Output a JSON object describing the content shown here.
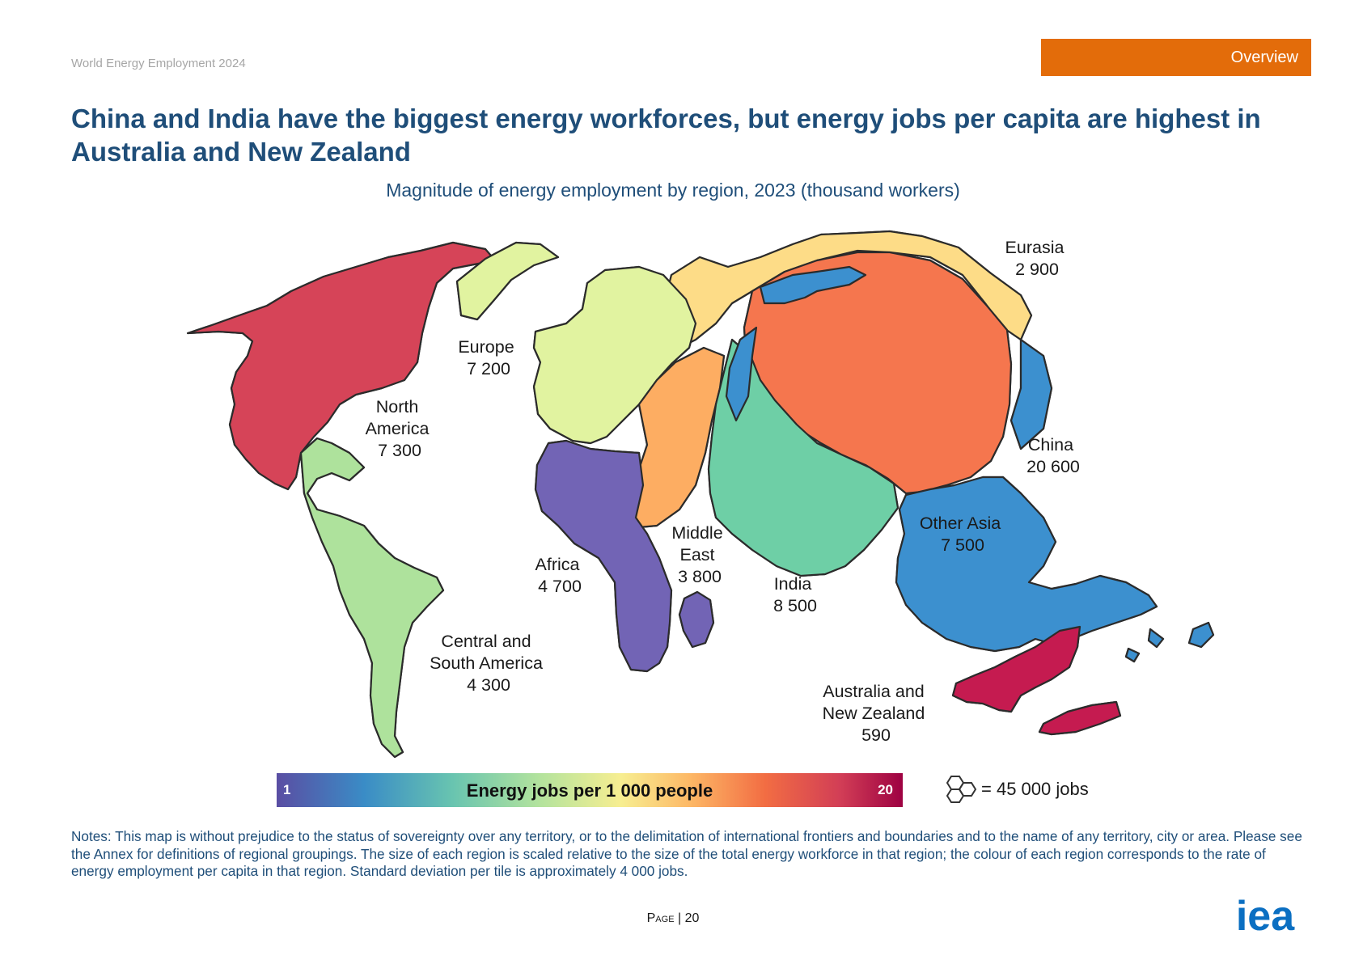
{
  "header": {
    "doc_title": "World Energy Employment 2024",
    "section_tab": "Overview"
  },
  "headline": "China and India have the biggest energy workforces, but energy jobs per capita are highest in Australia and New Zealand",
  "chart_data": {
    "type": "hex-cartogram",
    "title": "Magnitude of energy employment by region, 2023 (thousand workers)",
    "unit": "thousand workers",
    "regions": [
      {
        "name": "North America",
        "value": "7 300",
        "color": "#d64458"
      },
      {
        "name": "Europe",
        "value": "7 200",
        "color": "#e1f3a0"
      },
      {
        "name": "Eurasia",
        "value": "2 900",
        "color": "#fddc87"
      },
      {
        "name": "China",
        "value": "20 600",
        "color": "#f5764e"
      },
      {
        "name": "Africa",
        "value": "4 700",
        "color": "#7264b5"
      },
      {
        "name": "Middle East",
        "value": "3 800",
        "color": "#fdad62"
      },
      {
        "name": "India",
        "value": "8 500",
        "color": "#6ecfa6"
      },
      {
        "name": "Other Asia",
        "value": "7 500",
        "color": "#3c90cf"
      },
      {
        "name": "Central and South America",
        "value": "4 300",
        "color": "#aee29c"
      },
      {
        "name": "Australia and New Zealand",
        "value": "590",
        "color": "#c51b50"
      }
    ],
    "colorbar": {
      "label": "Energy jobs per 1 000 people",
      "min_label": "1",
      "max_label": "20",
      "colors": [
        "#5a4ea3",
        "#3a8cc6",
        "#68c4b0",
        "#b3e39d",
        "#f7ee91",
        "#fdb866",
        "#f26d43",
        "#d23e56",
        "#9e0142"
      ]
    },
    "tile_legend": "= 45 000 jobs"
  },
  "region_labels": {
    "north_america": [
      "North",
      "America",
      "7 300"
    ],
    "europe": [
      "Europe",
      "7 200"
    ],
    "eurasia": [
      "Eurasia",
      "2 900"
    ],
    "china": [
      "China",
      "20 600"
    ],
    "africa": [
      "Africa",
      "4 700"
    ],
    "middle_east": [
      "Middle",
      "East",
      "3 800"
    ],
    "india": [
      "India",
      "8 500"
    ],
    "other_asia": [
      "Other Asia",
      "7 500"
    ],
    "csa": [
      "Central and",
      "South America",
      "4 300"
    ],
    "anz": [
      "Australia and",
      "New Zealand",
      "590"
    ]
  },
  "notes": "Notes: This map is without prejudice to the status of sovereignty over any territory, or to the delimitation of international frontiers and boundaries and to the name of any territory, city or area. Please see the Annex for definitions of regional groupings. The size of each region is scaled relative to the size of the total energy workforce in that region; the colour of each region corresponds to the rate of energy employment per capita in that region. Standard deviation per tile is approximately 4 000 jobs.",
  "footer": {
    "page_word": "Page",
    "page_sep": " | ",
    "page_number": "20",
    "logo_text": "iea"
  }
}
